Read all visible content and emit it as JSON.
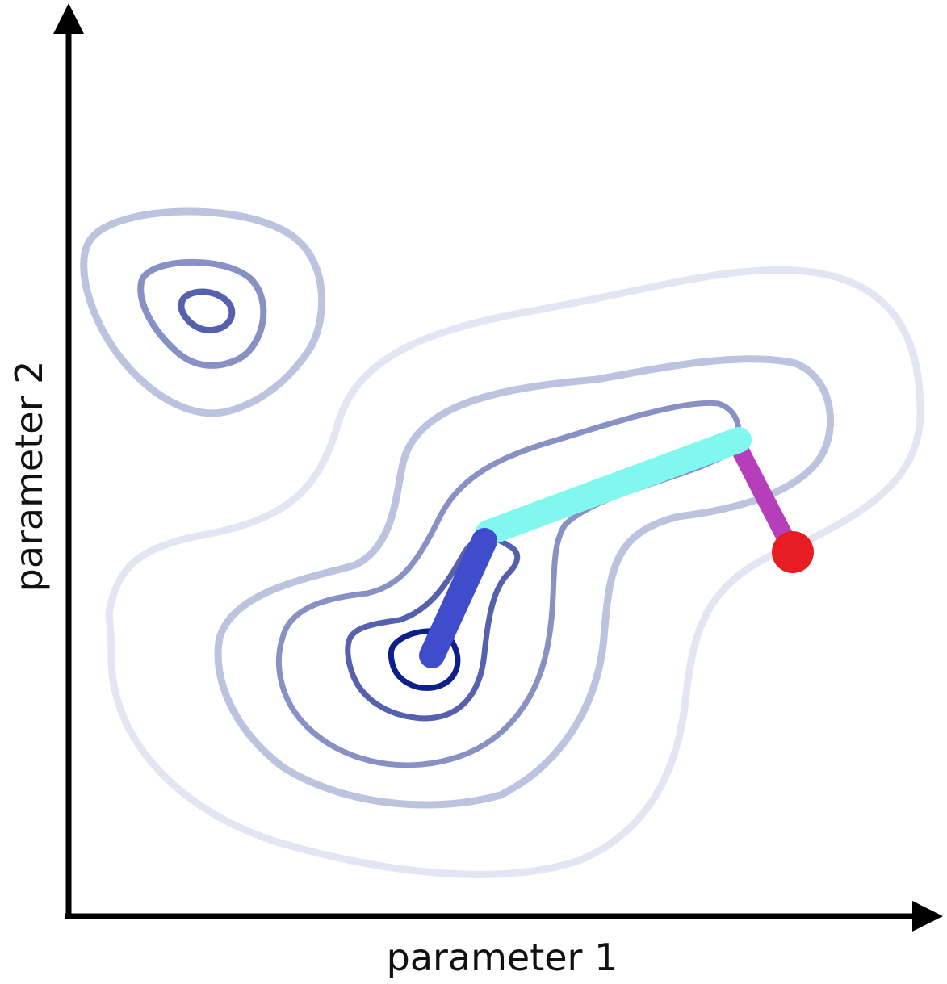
{
  "axes": {
    "x_label": "parameter 1",
    "y_label": "parameter 2"
  },
  "colors": {
    "axis": "#000000",
    "contour_outer": "#e3e5f3",
    "contour_level_2": "#bcc3de",
    "contour_level_3": "#8891c3",
    "contour_level_4": "#5561ac",
    "contour_inner": "#0d1f8a",
    "path_segment_1": "#3f4ccc",
    "path_segment_2": "#80f8f0",
    "path_segment_3": "#b63eba",
    "start_point": "#e71d23"
  },
  "optimization_path": {
    "segments": [
      "segment-1",
      "segment-2",
      "segment-3"
    ],
    "start_marker": "red-dot"
  }
}
